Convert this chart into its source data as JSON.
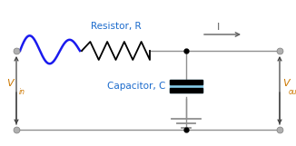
{
  "bg_color": "#ffffff",
  "wire_color": "#909090",
  "resistor_color": "#000000",
  "sine_color": "#1a1aee",
  "capacitor_fill": "#87ceeb",
  "capacitor_plate_color": "#000000",
  "dot_color": "#000000",
  "node_color": "#b0b0b0",
  "arrow_color": "#404040",
  "label_color": "#1a6acc",
  "current_color": "#606060",
  "vin_color": "#cc7700",
  "vout_color": "#cc7700",
  "resistor_label": "Resistor, R",
  "capacitor_label": "Capacitor, C",
  "current_label": "I",
  "vin_label": "V",
  "vin_sub": "in",
  "vout_label": "V",
  "vout_sub": "out",
  "fig_width": 3.26,
  "fig_height": 1.61,
  "dpi": 100
}
